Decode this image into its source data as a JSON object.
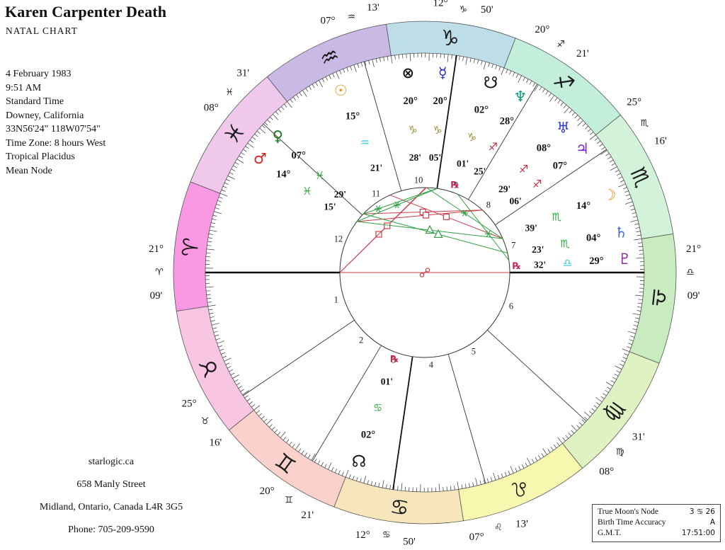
{
  "header": {
    "title": "Karen Carpenter Death",
    "subtitle": "NATAL CHART"
  },
  "birth_info": [
    "4 February 1983",
    "9:51 AM",
    "Standard Time",
    "Downey, California",
    "33N56'24\"  118W07'54\"",
    "Time Zone: 8 hours West",
    "Tropical Placidus",
    "Mean Node"
  ],
  "footer": [
    "starlogic.ca",
    "658 Manly Street",
    "Midland, Ontario, Canada  L4R 3G5",
    "Phone: 705-209-9590"
  ],
  "info_box": {
    "rows": [
      {
        "label": "True Moon's Node",
        "value": "3 ♋ 26"
      },
      {
        "label": "Birth Time Accuracy",
        "value": "A"
      },
      {
        "label": "G.M.T.",
        "value": "17:51:00"
      }
    ]
  },
  "chart": {
    "ascendant_longitude": 21.15,
    "aspect_colors": {
      "hard": "#CE3B49",
      "soft": "#2FA044"
    },
    "signs": [
      {
        "key": "aries",
        "glyph": "♈",
        "band_color": "#F998E3",
        "glyph_color": "#C62641"
      },
      {
        "key": "taurus",
        "glyph": "♉",
        "band_color": "#F8C6E3",
        "glyph_color": "#9C8C33"
      },
      {
        "key": "gemini",
        "glyph": "♊",
        "band_color": "#FAD2CB",
        "glyph_color": "#32C8D9"
      },
      {
        "key": "cancer",
        "glyph": "♋",
        "band_color": "#F7E5BB",
        "glyph_color": "#2EA83C"
      },
      {
        "key": "leo",
        "glyph": "♌",
        "band_color": "#F7F7B0",
        "glyph_color": "#C62641"
      },
      {
        "key": "virgo",
        "glyph": "♍",
        "band_color": "#DEF2C2",
        "glyph_color": "#9C8C33"
      },
      {
        "key": "libra",
        "glyph": "♎",
        "band_color": "#C8ECBF",
        "glyph_color": "#32C8D9"
      },
      {
        "key": "scorpio",
        "glyph": "♏",
        "band_color": "#D2F2D9",
        "glyph_color": "#2EA83C"
      },
      {
        "key": "sagittarius",
        "glyph": "♐",
        "band_color": "#C3EEDC",
        "glyph_color": "#C62641"
      },
      {
        "key": "capricorn",
        "glyph": "♑",
        "band_color": "#BDDEE9",
        "glyph_color": "#9C8C33"
      },
      {
        "key": "aquarius",
        "glyph": "♒",
        "band_color": "#CAB8E5",
        "glyph_color": "#32C8D9"
      },
      {
        "key": "pisces",
        "glyph": "♓",
        "band_color": "#EFC8EC",
        "glyph_color": "#2EA83C"
      }
    ],
    "houses": [
      {
        "num": 1,
        "axis": "asc",
        "longitude": 21.15,
        "cusp": {
          "deg": "21",
          "sign": "aries",
          "min": "09"
        }
      },
      {
        "num": 2,
        "axis": "",
        "longitude": 55.267,
        "cusp": {
          "deg": "25",
          "sign": "taurus",
          "min": "16"
        }
      },
      {
        "num": 3,
        "axis": "",
        "longitude": 80.35,
        "cusp": {
          "deg": "20",
          "sign": "gemini",
          "min": "21"
        }
      },
      {
        "num": 4,
        "axis": "ic",
        "longitude": 102.833,
        "cusp": {
          "deg": "12",
          "sign": "cancer",
          "min": "50"
        }
      },
      {
        "num": 5,
        "axis": "",
        "longitude": 127.217,
        "cusp": {
          "deg": "07",
          "sign": "leo",
          "min": "13"
        }
      },
      {
        "num": 6,
        "axis": "",
        "longitude": 158.517,
        "cusp": {
          "deg": "08",
          "sign": "virgo",
          "min": "31"
        }
      },
      {
        "num": 7,
        "axis": "dsc",
        "longitude": 201.15,
        "cusp": {
          "deg": "21",
          "sign": "libra",
          "min": "09"
        }
      },
      {
        "num": 8,
        "axis": "",
        "longitude": 235.267,
        "cusp": {
          "deg": "25",
          "sign": "scorpio",
          "min": "16"
        }
      },
      {
        "num": 9,
        "axis": "",
        "longitude": 260.35,
        "cusp": {
          "deg": "20",
          "sign": "sagittarius",
          "min": "21"
        }
      },
      {
        "num": 10,
        "axis": "mc",
        "longitude": 282.833,
        "cusp": {
          "deg": "12",
          "sign": "capricorn",
          "min": "50"
        }
      },
      {
        "num": 11,
        "axis": "",
        "longitude": 307.217,
        "cusp": {
          "deg": "07",
          "sign": "aquarius",
          "min": "13"
        }
      },
      {
        "num": 12,
        "axis": "",
        "longitude": 338.517,
        "cusp": {
          "deg": "08",
          "sign": "pisces",
          "min": "31"
        }
      }
    ],
    "planets": [
      {
        "key": "sun",
        "glyph": "☉",
        "color": "#E2991C",
        "deg": "15",
        "sign": "aquarius",
        "min": "21",
        "longitude": 315.35,
        "display_angle": 114.8,
        "retrograde": false
      },
      {
        "key": "moon",
        "glyph": "☽",
        "color": "#E08A18",
        "deg": "14",
        "sign": "scorpio",
        "min": "39",
        "longitude": 224.65,
        "display_angle": 22.8,
        "retrograde": false
      },
      {
        "key": "mercury",
        "glyph": "☿",
        "color": "#2626CF",
        "deg": "20",
        "sign": "capricorn",
        "min": "05",
        "longitude": 290.083,
        "display_angle": 84.9,
        "retrograde": false
      },
      {
        "key": "venus",
        "glyph": "♀",
        "color": "#157815",
        "deg": "07",
        "sign": "pisces",
        "min": "29",
        "longitude": 337.483,
        "display_angle": 137.2,
        "retrograde": false
      },
      {
        "key": "mars",
        "glyph": "♂",
        "color": "#D62421",
        "deg": "14",
        "sign": "pisces",
        "min": "15",
        "longitude": 344.25,
        "display_angle": 145.3,
        "retrograde": false
      },
      {
        "key": "jupiter",
        "glyph": "♃",
        "color": "#7B22D8",
        "deg": "07",
        "sign": "sagittarius",
        "min": "06",
        "longitude": 247.1,
        "display_angle": 38.2,
        "retrograde": false
      },
      {
        "key": "saturn",
        "glyph": "♄",
        "color": "#3B6FC6",
        "deg": "04",
        "sign": "scorpio",
        "min": "23",
        "longitude": 214.383,
        "display_angle": 11.5,
        "retrograde": false
      },
      {
        "key": "uranus",
        "glyph": "♅",
        "color": "#2A35DB",
        "deg": "08",
        "sign": "sagittarius",
        "min": "29",
        "longitude": 248.483,
        "display_angle": 46.3,
        "retrograde": false
      },
      {
        "key": "neptune",
        "glyph": "♆",
        "color": "#0F9878",
        "deg": "28",
        "sign": "sagittarius",
        "min": "25",
        "longitude": 268.417,
        "display_angle": 61.5,
        "retrograde": false
      },
      {
        "key": "pluto",
        "glyph": "♇",
        "color": "#8C23A3",
        "deg": "29",
        "sign": "libra",
        "min": "32",
        "longitude": 209.533,
        "display_angle": 3.8,
        "retrograde": true
      },
      {
        "key": "south-node",
        "glyph": "☋",
        "color": "#151515",
        "deg": "02",
        "sign": "capricorn",
        "min": "01",
        "longitude": 272.017,
        "display_angle": 70.8,
        "retrograde": true
      },
      {
        "key": "north-node",
        "glyph": "☊",
        "color": "#151515",
        "deg": "02",
        "sign": "cancer",
        "min": "01",
        "longitude": 92.017,
        "display_angle": 250.8,
        "retrograde": true
      },
      {
        "key": "fortune",
        "glyph": "⊗",
        "color": "#151515",
        "deg": "20",
        "sign": "capricorn",
        "min": "28",
        "longitude": 290.467,
        "display_angle": 94.8,
        "retrograde": false
      }
    ],
    "aspects": [
      {
        "from": "sun",
        "to": "moon",
        "type": "square"
      },
      {
        "from": "venus",
        "to": "uranus",
        "type": "square"
      },
      {
        "from": "mars",
        "to": "uranus",
        "type": "square",
        "t": 0.55
      },
      {
        "from": "mercury",
        "to": "asc",
        "type": "square",
        "t": 0.55
      },
      {
        "from": "fortune",
        "to": "asc",
        "type": "square",
        "t": 0.45
      },
      {
        "from": "asc",
        "to": "dsc",
        "type": "opposition"
      },
      {
        "from": "moon",
        "to": "mars",
        "type": "trine"
      },
      {
        "from": "venus",
        "to": "saturn",
        "type": "trine",
        "t": 0.52
      },
      {
        "from": "moon",
        "to": "mercury",
        "type": "sextile"
      },
      {
        "from": "neptune",
        "to": "pluto",
        "type": "sextile",
        "t": 0.6
      },
      {
        "from": "mars",
        "to": "mc",
        "type": "sextile"
      },
      {
        "from": "venus",
        "to": "mc",
        "type": "sextile",
        "t": 0.2
      }
    ]
  }
}
